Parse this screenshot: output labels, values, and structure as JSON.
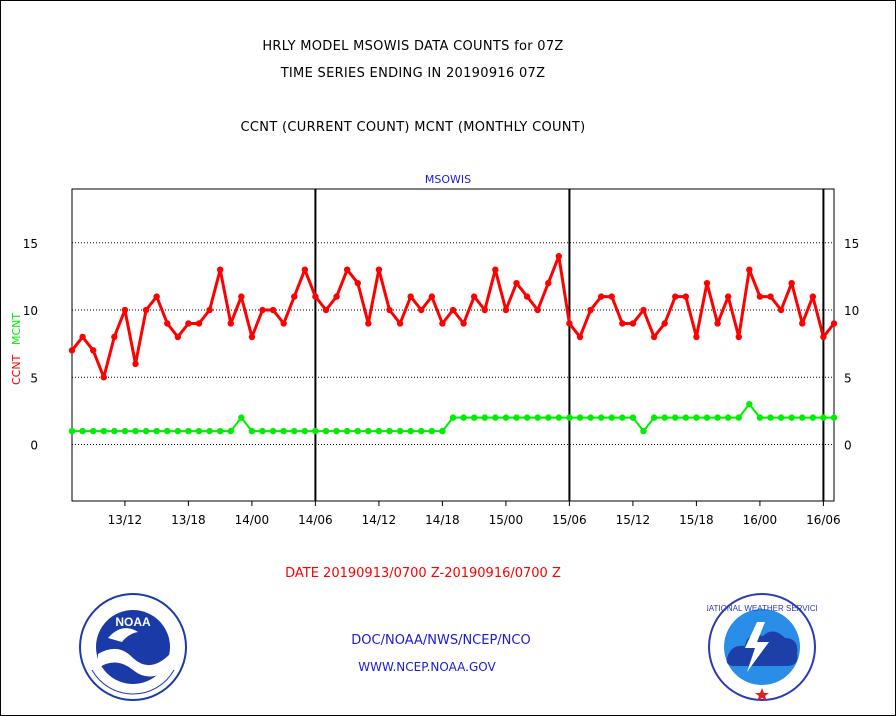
{
  "header": {
    "line1": "HRLY MODEL MSOWIS DATA COUNTS for 07Z",
    "line2": "TIME SERIES ENDING IN 20190916 07Z",
    "line3": "CCNT (CURRENT COUNT) MCNT (MONTHLY COUNT)"
  },
  "colors": {
    "ccnt": "#ff0000",
    "mcnt": "#00ee00",
    "accent_blue": "#1a1adc",
    "axis": "#000000"
  },
  "footer": {
    "date_range": "DATE 20190913/0700 Z-20190916/0700 Z",
    "org": "DOC/NOAA/NWS/NCEP/NCO",
    "url": "WWW.NCEP.NOAA.GOV"
  },
  "logos": {
    "left": "NOAA",
    "right": "NATIONAL WEATHER SERVICE"
  },
  "chart_data": {
    "type": "line",
    "title": "MSOWIS",
    "ylabel_ccnt": "CCNT",
    "ylabel_mcnt": "MCNT",
    "ylim": [
      -4.2,
      19
    ],
    "yticks": [
      0,
      5,
      10,
      15
    ],
    "xlim": [
      0,
      72
    ],
    "x_tick_hours": [
      5,
      11,
      17,
      23,
      29,
      35,
      41,
      47,
      53,
      59,
      65,
      71
    ],
    "x_tick_labels": [
      "13/12",
      "13/18",
      "14/00",
      "14/06",
      "14/12",
      "14/18",
      "15/00",
      "15/06",
      "15/12",
      "15/18",
      "16/00",
      "16/06"
    ],
    "day_boundaries_hours": [
      23,
      47,
      71
    ],
    "grid": "horizontal dotted",
    "series": [
      {
        "name": "CCNT",
        "values": [
          7,
          8,
          7,
          5,
          8,
          10,
          6,
          10,
          11,
          9,
          8,
          9,
          9,
          10,
          13,
          9,
          11,
          8,
          10,
          10,
          9,
          11,
          13,
          11,
          10,
          11,
          13,
          12,
          9,
          13,
          10,
          9,
          11,
          10,
          11,
          9,
          10,
          9,
          11,
          10,
          13,
          10,
          12,
          11,
          10,
          12,
          14,
          9,
          8,
          10,
          11,
          11,
          9,
          9,
          10,
          8,
          9,
          11,
          11,
          8,
          12,
          9,
          11,
          8,
          13,
          11,
          11,
          10,
          12,
          9,
          11,
          8,
          9
        ]
      },
      {
        "name": "MCNT",
        "values": [
          1,
          1,
          1,
          1,
          1,
          1,
          1,
          1,
          1,
          1,
          1,
          1,
          1,
          1,
          1,
          1,
          2,
          1,
          1,
          1,
          1,
          1,
          1,
          1,
          1,
          1,
          1,
          1,
          1,
          1,
          1,
          1,
          1,
          1,
          1,
          1,
          2,
          2,
          2,
          2,
          2,
          2,
          2,
          2,
          2,
          2,
          2,
          2,
          2,
          2,
          2,
          2,
          2,
          2,
          1,
          2,
          2,
          2,
          2,
          2,
          2,
          2,
          2,
          2,
          3,
          2,
          2,
          2,
          2,
          2,
          2,
          2,
          2
        ]
      }
    ]
  }
}
